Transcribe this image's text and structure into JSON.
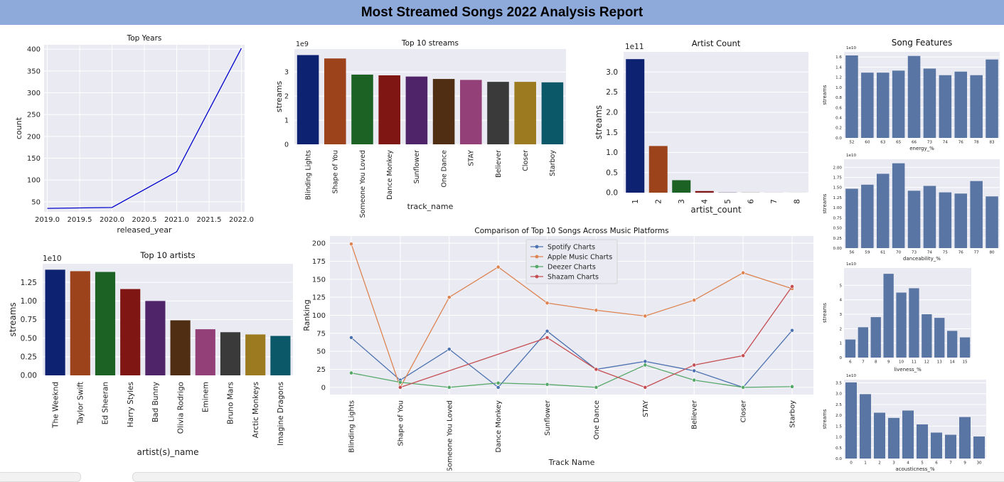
{
  "report": {
    "title": "Most Streamed Songs 2022 Analysis Report"
  },
  "colors": {
    "plot_bg": "#eaeaf2",
    "grid": "#ffffff",
    "line_blue": "#0000cc",
    "steel": "#5975a4",
    "deep": [
      "#0d2270",
      "#9c431b",
      "#1c6224",
      "#7f1614",
      "#4f2469",
      "#4f2e14",
      "#934078",
      "#3a3a3a",
      "#9c7a1f",
      "#0b5868"
    ]
  },
  "chart_data": [
    {
      "id": "top-years",
      "type": "line",
      "title": "Top Years",
      "xlabel": "released_year",
      "ylabel": "count",
      "x": [
        2019,
        2020,
        2021,
        2022
      ],
      "values": [
        35,
        37,
        119,
        402
      ],
      "xlim": [
        2018.95,
        2022.05
      ],
      "ylim": [
        27,
        410
      ],
      "xticks": [
        2019,
        2019.5,
        2020,
        2020.5,
        2021,
        2021.5,
        2022
      ],
      "xtick_labels": [
        "2019.0",
        "2019.5",
        "2020.0",
        "2020.5",
        "2021.0",
        "2021.5",
        "2022.0"
      ],
      "yticks": [
        50,
        100,
        150,
        200,
        250,
        300,
        350,
        400
      ],
      "ytick_labels": [
        "50",
        "100",
        "150",
        "200",
        "250",
        "300",
        "350",
        "400"
      ],
      "grid": true
    },
    {
      "id": "top-streams",
      "type": "bar",
      "title": "Top 10 streams",
      "xlabel": "track_name",
      "ylabel": "streams",
      "offset_text": "1e9",
      "categories": [
        "Blinding Lights",
        "Shape of You",
        "Someone You Loved",
        "Dance Monkey",
        "Sunflower",
        "One Dance",
        "STAY",
        "Believer",
        "Closer",
        "Starboy"
      ],
      "values": [
        3.7,
        3.56,
        2.89,
        2.86,
        2.81,
        2.71,
        2.67,
        2.59,
        2.59,
        2.57
      ],
      "ylim": [
        0,
        3.95
      ],
      "yticks": [
        0,
        1,
        2,
        3
      ],
      "ytick_labels": [
        "0",
        "1",
        "2",
        "3"
      ],
      "grid": true
    },
    {
      "id": "artist-count",
      "type": "bar",
      "title": "Artist Count",
      "xlabel": "artist_count",
      "ylabel": "streams",
      "offset_text": "1e11",
      "categories": [
        "1",
        "2",
        "3",
        "4",
        "5",
        "6",
        "7",
        "8"
      ],
      "values": [
        3.32,
        1.16,
        0.31,
        0.04,
        0.005,
        0.003,
        0.002,
        0.001
      ],
      "ylim": [
        0,
        3.5
      ],
      "yticks": [
        0,
        0.5,
        1,
        1.5,
        2,
        2.5,
        3
      ],
      "ytick_labels": [
        "0.0",
        "0.5",
        "1.0",
        "1.5",
        "2.0",
        "2.5",
        "3.0"
      ],
      "grid": true
    },
    {
      "id": "top-artists",
      "type": "bar",
      "title": "Top 10 artists",
      "xlabel": "artist(s)_name",
      "ylabel": "streams",
      "offset_text": "1e10",
      "categories": [
        "The Weeknd",
        "Taylor Swift",
        "Ed Sheeran",
        "Harry Styles",
        "Bad Bunny",
        "Olivia Rodrigo",
        "Eminem",
        "Bruno Mars",
        "Arctic Monkeys",
        "Imagine Dragons"
      ],
      "values": [
        1.42,
        1.4,
        1.39,
        1.16,
        1.0,
        0.74,
        0.62,
        0.58,
        0.55,
        0.53
      ],
      "ylim": [
        0,
        1.5
      ],
      "yticks": [
        0,
        0.25,
        0.5,
        0.75,
        1,
        1.25
      ],
      "ytick_labels": [
        "0.00",
        "0.25",
        "0.50",
        "0.75",
        "1.00",
        "1.25"
      ],
      "grid": true
    },
    {
      "id": "platform-comparison",
      "type": "line",
      "title": "Comparison of Top 10 Songs Across Music Platforms",
      "xlabel": "Track Name",
      "ylabel": "Ranking",
      "categories": [
        "Blinding Lights",
        "Shape of You",
        "Someone You Loved",
        "Dance Monkey",
        "Sunflower",
        "One Dance",
        "STAY",
        "Believer",
        "Closer",
        "Starboy"
      ],
      "series": [
        {
          "name": "Spotify Charts",
          "color": "#4c72b0",
          "values": [
            69,
            10,
            53,
            0,
            78,
            25,
            36,
            23,
            0,
            79
          ]
        },
        {
          "name": "Apple Music Charts",
          "color": "#dd8452",
          "values": [
            199,
            0,
            125,
            167,
            117,
            107,
            99,
            121,
            159,
            137
          ]
        },
        {
          "name": "Deezer Charts",
          "color": "#55a868",
          "values": [
            20,
            7,
            0,
            6,
            4,
            0,
            31,
            10,
            0,
            1
          ]
        },
        {
          "name": "Shazam Charts",
          "color": "#c44e52",
          "values": [
            null,
            0,
            null,
            null,
            69,
            25,
            0,
            31,
            44,
            140
          ]
        }
      ],
      "ylim": [
        -10,
        210
      ],
      "yticks": [
        0,
        25,
        50,
        75,
        100,
        125,
        150,
        175,
        200
      ],
      "ytick_labels": [
        "0",
        "25",
        "50",
        "75",
        "100",
        "125",
        "150",
        "175",
        "200"
      ],
      "legend": "top-center",
      "grid": true
    },
    {
      "id": "feature-energy",
      "type": "bar",
      "group_title": "Song Features",
      "xlabel": "energy_%",
      "ylabel": "streams",
      "offset_text": "1e10",
      "categories": [
        "52",
        "60",
        "63",
        "65",
        "66",
        "73",
        "74",
        "76",
        "78",
        "83"
      ],
      "values": [
        1.63,
        1.29,
        1.29,
        1.33,
        1.62,
        1.37,
        1.24,
        1.31,
        1.24,
        1.55
      ],
      "ylim": [
        0,
        1.7
      ],
      "yticks": [
        0,
        0.2,
        0.4,
        0.6,
        0.8,
        1.0,
        1.2,
        1.4,
        1.6
      ],
      "ytick_labels": [
        "0.0",
        "0.2",
        "0.4",
        "0.6",
        "0.8",
        "1.0",
        "1.2",
        "1.4",
        "1.6"
      ],
      "grid": true
    },
    {
      "id": "feature-danceability",
      "type": "bar",
      "xlabel": "danceability_%",
      "ylabel": "streams",
      "offset_text": "1e10",
      "categories": [
        "56",
        "59",
        "61",
        "70",
        "73",
        "74",
        "75",
        "76",
        "77",
        "80"
      ],
      "values": [
        1.47,
        1.57,
        1.84,
        2.1,
        1.42,
        1.54,
        1.38,
        1.35,
        1.66,
        1.28
      ],
      "ylim": [
        0,
        2.2
      ],
      "yticks": [
        0,
        0.25,
        0.5,
        0.75,
        1.0,
        1.25,
        1.5,
        1.75,
        2.0
      ],
      "ytick_labels": [
        "0.00",
        "0.25",
        "0.50",
        "0.75",
        "1.00",
        "1.25",
        "1.50",
        "1.75",
        "2.00"
      ],
      "grid": true
    },
    {
      "id": "feature-liveness",
      "type": "bar",
      "xlabel": "liveness_%",
      "ylabel": "streams",
      "offset_text": "1e10",
      "categories": [
        "6",
        "7",
        "8",
        "9",
        "10",
        "11",
        "12",
        "13",
        "14",
        "15"
      ],
      "values": [
        1.25,
        2.1,
        2.8,
        5.8,
        4.5,
        4.8,
        3.0,
        2.75,
        1.85,
        1.4
      ],
      "ylim": [
        0,
        6.2
      ],
      "yticks": [
        0,
        1,
        2,
        3,
        4,
        5
      ],
      "ytick_labels": [
        "0",
        "1",
        "2",
        "3",
        "4",
        "5"
      ],
      "grid": true
    },
    {
      "id": "feature-acousticness",
      "type": "bar",
      "xlabel": "acousticness_%",
      "ylabel": "streams",
      "offset_text": "1e10",
      "categories": [
        "0",
        "1",
        "2",
        "3",
        "4",
        "5",
        "6",
        "7",
        "9",
        "30"
      ],
      "values": [
        3.52,
        2.98,
        2.12,
        1.88,
        2.22,
        1.58,
        1.2,
        1.1,
        1.92,
        1.02
      ],
      "ylim": [
        0,
        3.65
      ],
      "yticks": [
        0,
        0.5,
        1.0,
        1.5,
        2.0,
        2.5,
        3.0,
        3.5
      ],
      "ytick_labels": [
        "0.0",
        "0.5",
        "1.0",
        "1.5",
        "2.0",
        "2.5",
        "3.0",
        "3.5"
      ],
      "grid": true
    }
  ]
}
